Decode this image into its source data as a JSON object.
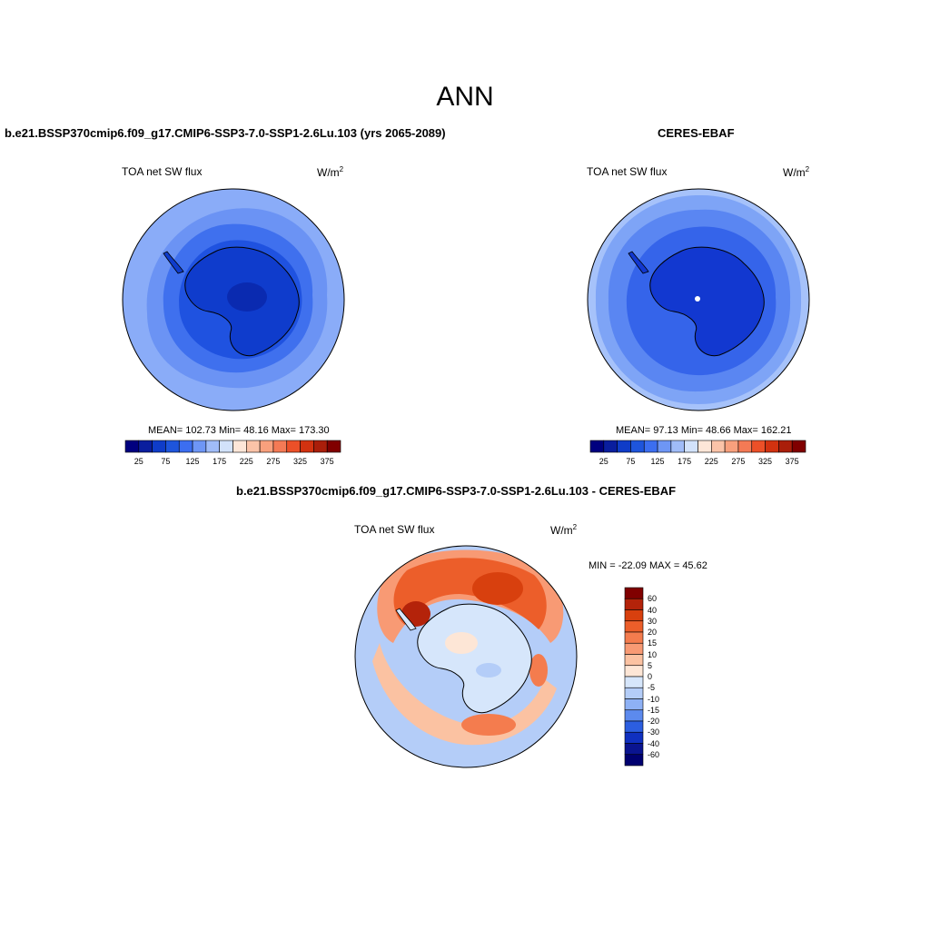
{
  "title": "ANN",
  "panels": [
    {
      "id": "model",
      "title": "b.e21.BSSP370cmip6.f09_g17.CMIP6-SSP3-7.0-SSP1-2.6Lu.103 (yrs 2065-2089)",
      "variable": "TOA net SW flux",
      "units_base": "W/m",
      "units_exp": "2",
      "stats": "MEAN= 102.73  Min=  48.16  Max= 173.30"
    },
    {
      "id": "obs",
      "title": "CERES-EBAF",
      "variable": "TOA net SW flux",
      "units_base": "W/m",
      "units_exp": "2",
      "stats": "MEAN=  97.13  Min=  48.66  Max= 162.21"
    },
    {
      "id": "diff",
      "title": "b.e21.BSSP370cmip6.f09_g17.CMIP6-SSP3-7.0-SSP1-2.6Lu.103 - CERES-EBAF",
      "variable": "TOA net SW flux",
      "units_base": "W/m",
      "units_exp": "2",
      "stats": "MIN = -22.09 MAX =  45.62"
    }
  ],
  "colorbar_abs": {
    "colors": [
      "#00007f",
      "#0a1e9e",
      "#0f3cc8",
      "#1e55dc",
      "#3c6ef0",
      "#6e96f5",
      "#a0bcf8",
      "#d2e2fb",
      "#fde6d8",
      "#fbc3a8",
      "#f8a07d",
      "#f47a55",
      "#ec5028",
      "#d23210",
      "#aa1e0a",
      "#800000"
    ],
    "ticks": [
      "25",
      "75",
      "125",
      "175",
      "225",
      "275",
      "325",
      "375"
    ]
  },
  "colorbar_diff": {
    "levels": [
      "60",
      "40",
      "30",
      "20",
      "15",
      "10",
      "5",
      "0",
      "-5",
      "-10",
      "-15",
      "-20",
      "-30",
      "-40",
      "-60"
    ],
    "colors": [
      "#800000",
      "#b4230a",
      "#d8400e",
      "#ec5e2a",
      "#f47c4e",
      "#f89a74",
      "#fbc2a2",
      "#fde6d6",
      "#d6e6fb",
      "#b4cdf8",
      "#8eb1f5",
      "#5c8aee",
      "#2c5ee0",
      "#1030c0",
      "#0a1490",
      "#000070"
    ]
  }
}
